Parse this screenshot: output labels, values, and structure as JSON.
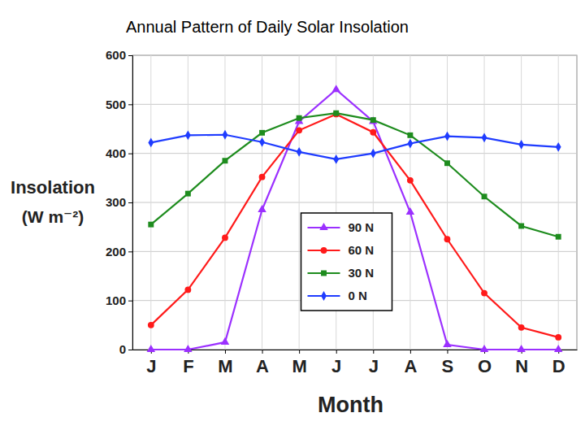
{
  "chart_data": {
    "type": "line",
    "title": "Annual Pattern of Daily Solar Insolation",
    "xlabel": "Month",
    "ylabel": [
      "Insolation",
      "(W m⁻²)"
    ],
    "categories": [
      "J",
      "F",
      "M",
      "A",
      "M",
      "J",
      "J",
      "A",
      "S",
      "O",
      "N",
      "D"
    ],
    "ylim": [
      0,
      600
    ],
    "yticks": [
      0,
      100,
      200,
      300,
      400,
      500,
      600
    ],
    "grid": true,
    "legend": "bottom",
    "series": [
      {
        "name": "90 N",
        "color": "#9b30ff",
        "marker": "triangle",
        "values": [
          0,
          0,
          15,
          285,
          465,
          530,
          465,
          280,
          10,
          0,
          0,
          0
        ]
      },
      {
        "name": "60 N",
        "color": "#ff1a1a",
        "marker": "circle",
        "values": [
          50,
          122,
          228,
          352,
          447,
          480,
          443,
          345,
          225,
          115,
          45,
          25
        ]
      },
      {
        "name": "30 N",
        "color": "#1e8c1e",
        "marker": "square",
        "values": [
          255,
          318,
          385,
          442,
          472,
          482,
          468,
          437,
          380,
          312,
          252,
          230
        ]
      },
      {
        "name": "0 N",
        "color": "#1f3cff",
        "marker": "diamond",
        "values": [
          422,
          437,
          438,
          423,
          403,
          388,
          400,
          420,
          435,
          432,
          418,
          413
        ]
      }
    ]
  }
}
